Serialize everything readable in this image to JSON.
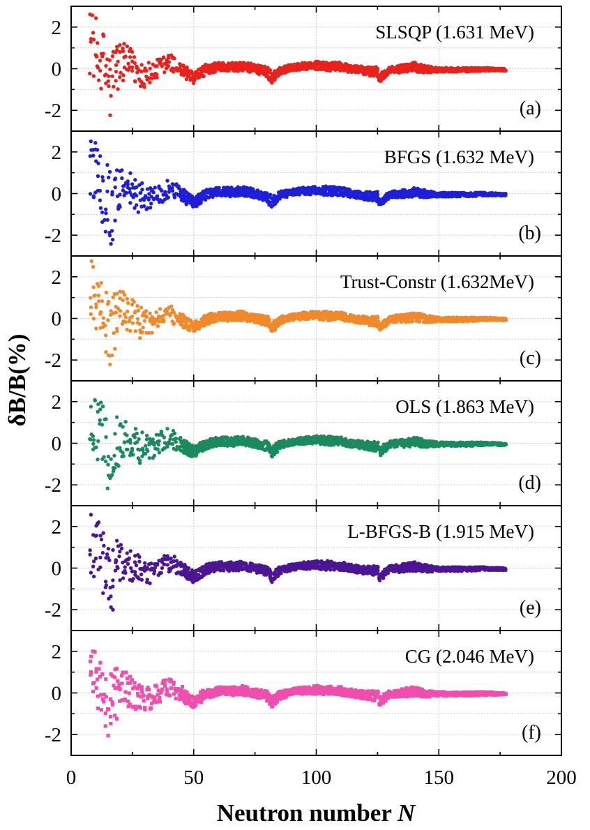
{
  "chart_data": {
    "type": "scatter",
    "layout": "six vertically stacked panels sharing the x axis",
    "xlabel_text": "Neutron number ",
    "xlabel_var": "N",
    "ylabel": "δB/B(%)",
    "xlim": [
      0,
      200
    ],
    "ylim": [
      -3,
      3
    ],
    "x_ticks": [
      "0",
      "50",
      "100",
      "150",
      "200"
    ],
    "y_ticks": [
      "2",
      "0",
      "-2"
    ],
    "grid": true,
    "panels": [
      {
        "letter": "(a)",
        "label": "SLSQP (1.631 MeV)",
        "color": "#e8221b",
        "marker": "circle"
      },
      {
        "letter": "(b)",
        "label": "BFGS (1.632 MeV)",
        "color": "#1f1fd8",
        "marker": "circle"
      },
      {
        "letter": "(c)",
        "label": "Trust-Constr (1.632MeV)",
        "color": "#f0892b",
        "marker": "circle"
      },
      {
        "letter": "(d)",
        "label": "OLS (1.863 MeV)",
        "color": "#1b8a5e",
        "marker": "circle"
      },
      {
        "letter": "(e)",
        "label": "L-BFGS-B (1.915 MeV)",
        "color": "#4b1594",
        "marker": "circle"
      },
      {
        "letter": "(f)",
        "label": "CG (2.046 MeV)",
        "color": "#ee4fae",
        "marker": "square"
      }
    ],
    "envelope_description": "points lie between the curves upper(N) and lower(N)",
    "envelope_N": [
      8,
      12,
      16,
      20,
      24,
      28,
      32,
      36,
      40,
      45,
      50,
      55,
      60,
      65,
      70,
      75,
      80,
      82,
      85,
      90,
      95,
      100,
      105,
      110,
      115,
      120,
      125,
      126,
      130,
      135,
      140,
      145,
      150,
      160,
      170,
      177
    ],
    "envelope_upper": [
      2.9,
      2.0,
      1.2,
      1.4,
      1.0,
      0.6,
      0.3,
      0.5,
      0.8,
      0.3,
      -0.2,
      0.2,
      0.3,
      0.3,
      0.35,
      0.2,
      0.1,
      -0.2,
      0.1,
      0.2,
      0.3,
      0.35,
      0.35,
      0.3,
      0.15,
      0.1,
      0.1,
      -0.2,
      0.1,
      0.2,
      0.3,
      0.15,
      0.05,
      0.05,
      0.05,
      0.0
    ],
    "envelope_lower": [
      -0.3,
      -1.0,
      -2.7,
      -0.8,
      -0.6,
      -1.0,
      -0.8,
      -0.5,
      -0.2,
      -0.4,
      -0.7,
      -0.3,
      -0.1,
      -0.15,
      -0.1,
      -0.2,
      -0.4,
      -0.7,
      -0.3,
      -0.1,
      -0.05,
      -0.05,
      -0.1,
      -0.1,
      -0.2,
      -0.3,
      -0.4,
      -0.6,
      -0.2,
      -0.2,
      -0.15,
      -0.2,
      -0.15,
      -0.15,
      -0.1,
      -0.1
    ]
  }
}
